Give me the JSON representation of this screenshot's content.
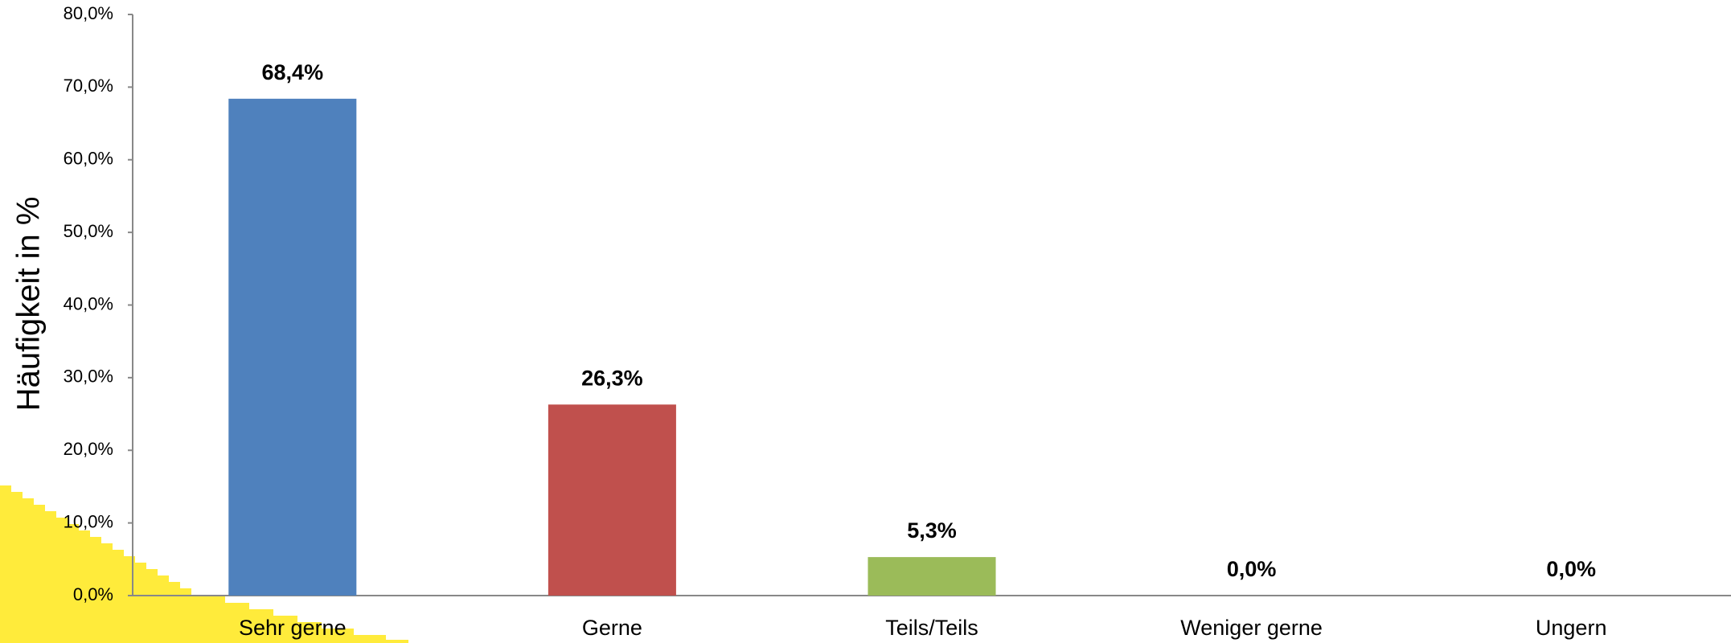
{
  "chart_data": {
    "type": "bar",
    "y_axis_label": "Häufigkeit in %",
    "categories": [
      "Sehr gerne",
      "Gerne",
      "Teils/Teils",
      "Weniger gerne",
      "Ungern"
    ],
    "values": [
      68.4,
      26.3,
      5.3,
      0,
      0
    ],
    "value_labels": [
      "68,4%",
      "26,3%",
      "5,3%",
      "0,0%",
      "0,0%"
    ],
    "colors": [
      "#4f81bd",
      "#c0504d",
      "#9bbb59",
      "#8064a2",
      "#4bacc6"
    ],
    "ylim": [
      0,
      80
    ],
    "yticks": [
      {
        "value": 0,
        "label": "0,0%"
      },
      {
        "value": 10,
        "label": "10,0%"
      },
      {
        "value": 20,
        "label": "20,0%"
      },
      {
        "value": 30,
        "label": "30,0%"
      },
      {
        "value": 40,
        "label": "40,0%"
      },
      {
        "value": 50,
        "label": "50,0%"
      },
      {
        "value": 60,
        "label": "60,0%"
      },
      {
        "value": 70,
        "label": "70,0%"
      },
      {
        "value": 80,
        "label": "80,0%"
      }
    ],
    "grid": false
  }
}
